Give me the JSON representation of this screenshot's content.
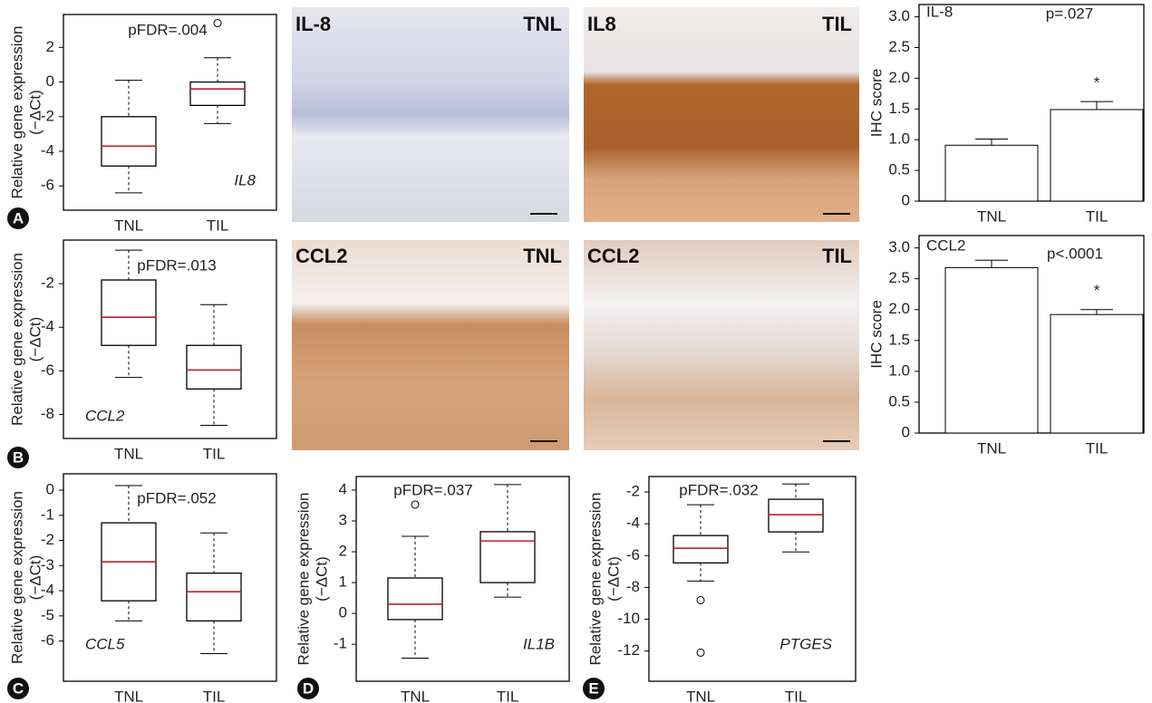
{
  "chart_data": [
    {
      "type": "box",
      "categories": [
        "TNL",
        "TIL"
      ],
      "annotation": "pFDR=.004",
      "gene": "IL8",
      "ylabel": [
        "Relative gene expression",
        "(−ΔCt)"
      ],
      "boxes": [
        {
          "whislo": -6.4,
          "q1": -4.85,
          "med": -3.7,
          "q3": -2.0,
          "whishi": 0.1,
          "fliers": []
        },
        {
          "whislo": -2.4,
          "q1": -1.35,
          "med": -0.4,
          "q3": 0.0,
          "whishi": 1.4,
          "fliers": [
            3.4
          ]
        }
      ],
      "box_color": "#000000",
      "median_color": "#c0202a",
      "ylim": [
        -7.4,
        3.9
      ],
      "yticks": [
        2,
        0,
        -2,
        -4,
        -6
      ]
    },
    {
      "type": "box",
      "categories": [
        "TNL",
        "TIL"
      ],
      "annotation": "pFDR=.013",
      "gene": "CCL2",
      "ylabel": [
        "Relative gene expression",
        "(−ΔCt)"
      ],
      "boxes": [
        {
          "whislo": -6.3,
          "q1": -4.83,
          "med": -3.54,
          "q3": -1.83,
          "whishi": -0.46,
          "fliers": []
        },
        {
          "whislo": -8.5,
          "q1": -6.83,
          "med": -5.96,
          "q3": -4.83,
          "whishi": -2.96,
          "fliers": []
        }
      ],
      "box_color": "#000000",
      "median_color": "#c0202a",
      "ylim": [
        -9.1,
        0
      ],
      "yticks": [
        -2,
        -4,
        -6,
        -8
      ]
    },
    {
      "type": "box",
      "categories": [
        "TNL",
        "TIL"
      ],
      "annotation": "pFDR=.052",
      "gene": "CCL5",
      "ylabel": [
        "Relative gene expression",
        "(−ΔCt)"
      ],
      "boxes": [
        {
          "whislo": -5.2,
          "q1": -4.4,
          "med": -2.85,
          "q3": -1.3,
          "whishi": 0.18,
          "fliers": []
        },
        {
          "whislo": -6.5,
          "q1": -5.2,
          "med": -4.04,
          "q3": -3.3,
          "whishi": -1.7,
          "fliers": []
        }
      ],
      "box_color": "#000000",
      "median_color": "#c0202a",
      "ylim": [
        -7.6,
        0.65
      ],
      "yticks": [
        0,
        -1,
        -2,
        -3,
        -4,
        -5,
        -6
      ]
    },
    {
      "type": "box",
      "categories": [
        "TNL",
        "TIL"
      ],
      "annotation": "pFDR=.037",
      "gene": "IL1B",
      "ylabel": [
        "Relative gene expression",
        "(−ΔCt)"
      ],
      "boxes": [
        {
          "whislo": -1.45,
          "q1": -0.2,
          "med": 0.3,
          "q3": 1.15,
          "whishi": 2.5,
          "fliers": [
            3.53
          ]
        },
        {
          "whislo": 0.53,
          "q1": 1.0,
          "med": 2.35,
          "q3": 2.65,
          "whishi": 4.18,
          "fliers": []
        }
      ],
      "box_color": "#000000",
      "median_color": "#c0202a",
      "ylim": [
        -2.2,
        4.44
      ],
      "yticks": [
        4,
        3,
        2,
        1,
        0,
        -1
      ]
    },
    {
      "type": "box",
      "categories": [
        "TNL",
        "TIL"
      ],
      "annotation": "pFDR=.032",
      "gene": "PTGES",
      "ylabel": [
        "Relative gene expression",
        "(−ΔCt)"
      ],
      "boxes": [
        {
          "whislo": -7.6,
          "q1": -6.46,
          "med": -5.54,
          "q3": -4.74,
          "whishi": -2.8,
          "fliers": [
            -8.8,
            -12.1
          ]
        },
        {
          "whislo": -5.77,
          "q1": -4.51,
          "med": -3.43,
          "q3": -2.46,
          "whishi": -1.5,
          "fliers": []
        }
      ],
      "box_color": "#000000",
      "median_color": "#c0202a",
      "ylim": [
        -13.9,
        -1.03
      ],
      "yticks": [
        -2,
        -4,
        -6,
        -8,
        -10,
        -12
      ]
    },
    {
      "type": "bar",
      "categories": [
        "TNL",
        "TIL"
      ],
      "annotation": "IL-8",
      "p_value": "p=.027",
      "significance": "*",
      "ylabel": "IHC score",
      "values": [
        0.91,
        1.49
      ],
      "errors": [
        0.1,
        0.13
      ],
      "color": "#ffffff",
      "ylim": [
        0,
        3.2
      ],
      "yticks": [
        0,
        0.5,
        {
          "value": 1,
          "label": "1.0"
        },
        1.5,
        {
          "value": 2,
          "label": "2.0"
        },
        2.5,
        {
          "value": 3,
          "label": "3.0"
        }
      ]
    },
    {
      "type": "bar",
      "categories": [
        "TNL",
        "TIL"
      ],
      "annotation": "CCL2",
      "p_value": "p<.0001",
      "significance": "*",
      "ylabel": "IHC score",
      "values": [
        2.68,
        1.92
      ],
      "errors": [
        0.12,
        0.08
      ],
      "color": "#ffffff",
      "ylim": [
        0,
        3.2
      ],
      "yticks": [
        0,
        0.5,
        {
          "value": 1,
          "label": "1.0"
        },
        1.5,
        {
          "value": 2,
          "label": "2.0"
        },
        2.5,
        {
          "value": 3,
          "label": "3.0"
        }
      ]
    }
  ],
  "micrographs": [
    {
      "stain": "IL-8",
      "group": "TNL"
    },
    {
      "stain": "IL8",
      "group": "TIL"
    },
    {
      "stain": "CCL2",
      "group": "TNL"
    },
    {
      "stain": "CCL2",
      "group": "TIL"
    }
  ],
  "panel_labels": [
    "A",
    "B",
    "C",
    "D",
    "E"
  ]
}
